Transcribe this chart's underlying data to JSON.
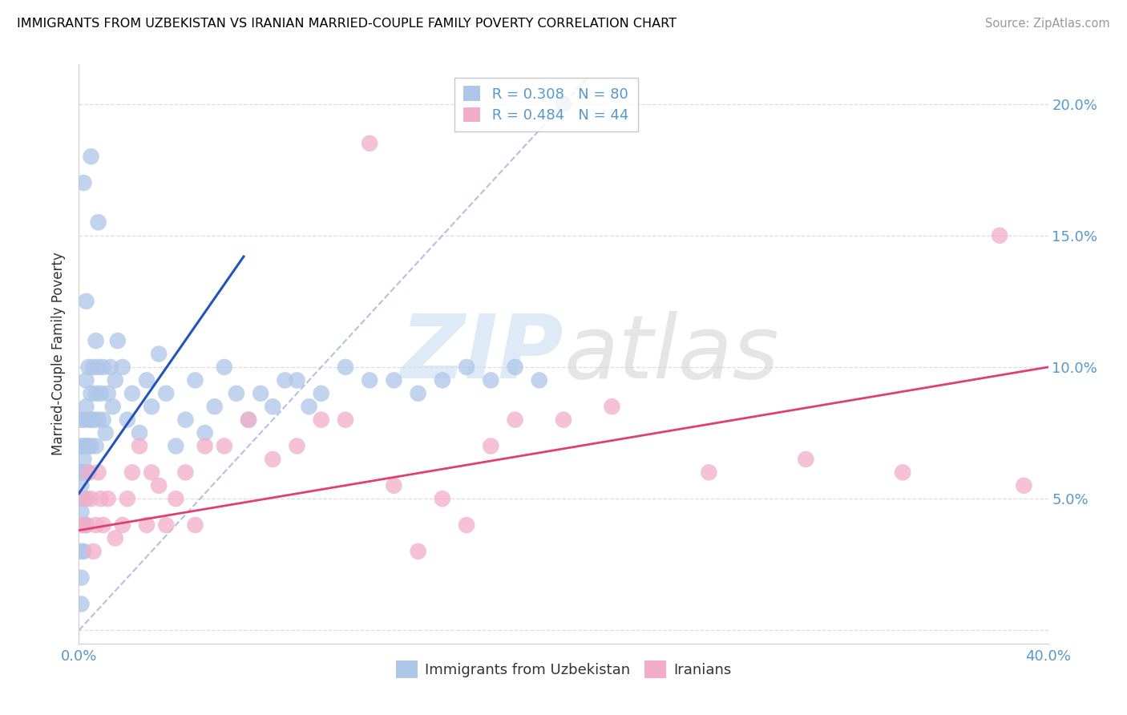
{
  "title": "IMMIGRANTS FROM UZBEKISTAN VS IRANIAN MARRIED-COUPLE FAMILY POVERTY CORRELATION CHART",
  "source": "Source: ZipAtlas.com",
  "ylabel": "Married-Couple Family Poverty",
  "legend1_label": "Immigrants from Uzbekistan",
  "legend2_label": "Iranians",
  "r1": 0.308,
  "n1": 80,
  "r2": 0.484,
  "n2": 44,
  "uzbek_color": "#aec6e8",
  "iran_color": "#f2aec8",
  "uzbek_line_color": "#2255bb",
  "iran_line_color": "#e04070",
  "diag_color": "#aabbdd",
  "grid_color": "#dddddd",
  "tick_color": "#5599cc",
  "xlim": [
    0.0,
    0.4
  ],
  "ylim": [
    -0.005,
    0.215
  ],
  "x_ticks": [
    0.0,
    0.05,
    0.1,
    0.15,
    0.2,
    0.25,
    0.3,
    0.35,
    0.4
  ],
  "y_ticks": [
    0.0,
    0.05,
    0.1,
    0.15,
    0.2
  ],
  "uzbek_x": [
    0.001,
    0.001,
    0.001,
    0.001,
    0.001,
    0.001,
    0.001,
    0.001,
    0.002,
    0.002,
    0.002,
    0.002,
    0.002,
    0.002,
    0.002,
    0.003,
    0.003,
    0.003,
    0.003,
    0.003,
    0.003,
    0.004,
    0.004,
    0.004,
    0.004,
    0.005,
    0.005,
    0.005,
    0.006,
    0.006,
    0.007,
    0.007,
    0.007,
    0.008,
    0.008,
    0.009,
    0.01,
    0.01,
    0.011,
    0.012,
    0.013,
    0.014,
    0.015,
    0.016,
    0.018,
    0.02,
    0.022,
    0.025,
    0.028,
    0.03,
    0.033,
    0.036,
    0.04,
    0.044,
    0.048,
    0.052,
    0.056,
    0.06,
    0.065,
    0.07,
    0.075,
    0.08,
    0.085,
    0.09,
    0.095,
    0.1,
    0.11,
    0.12,
    0.13,
    0.14,
    0.15,
    0.16,
    0.17,
    0.18,
    0.19,
    0.2,
    0.005,
    0.008,
    0.003,
    0.002
  ],
  "uzbek_y": [
    0.045,
    0.055,
    0.06,
    0.03,
    0.02,
    0.01,
    0.07,
    0.08,
    0.05,
    0.06,
    0.04,
    0.03,
    0.07,
    0.08,
    0.065,
    0.06,
    0.07,
    0.05,
    0.04,
    0.085,
    0.095,
    0.07,
    0.06,
    0.08,
    0.1,
    0.07,
    0.08,
    0.09,
    0.08,
    0.1,
    0.09,
    0.11,
    0.07,
    0.08,
    0.1,
    0.09,
    0.08,
    0.1,
    0.075,
    0.09,
    0.1,
    0.085,
    0.095,
    0.11,
    0.1,
    0.08,
    0.09,
    0.075,
    0.095,
    0.085,
    0.105,
    0.09,
    0.07,
    0.08,
    0.095,
    0.075,
    0.085,
    0.1,
    0.09,
    0.08,
    0.09,
    0.085,
    0.095,
    0.095,
    0.085,
    0.09,
    0.1,
    0.095,
    0.095,
    0.09,
    0.095,
    0.1,
    0.095,
    0.1,
    0.095,
    0.2,
    0.18,
    0.155,
    0.125,
    0.17
  ],
  "iran_x": [
    0.001,
    0.002,
    0.003,
    0.004,
    0.005,
    0.006,
    0.007,
    0.008,
    0.009,
    0.01,
    0.012,
    0.015,
    0.018,
    0.02,
    0.022,
    0.025,
    0.028,
    0.03,
    0.033,
    0.036,
    0.04,
    0.044,
    0.048,
    0.052,
    0.06,
    0.07,
    0.08,
    0.09,
    0.1,
    0.11,
    0.12,
    0.13,
    0.14,
    0.15,
    0.16,
    0.17,
    0.18,
    0.2,
    0.22,
    0.26,
    0.3,
    0.34,
    0.38,
    0.39
  ],
  "iran_y": [
    0.04,
    0.05,
    0.04,
    0.06,
    0.05,
    0.03,
    0.04,
    0.06,
    0.05,
    0.04,
    0.05,
    0.035,
    0.04,
    0.05,
    0.06,
    0.07,
    0.04,
    0.06,
    0.055,
    0.04,
    0.05,
    0.06,
    0.04,
    0.07,
    0.07,
    0.08,
    0.065,
    0.07,
    0.08,
    0.08,
    0.185,
    0.055,
    0.03,
    0.05,
    0.04,
    0.07,
    0.08,
    0.08,
    0.085,
    0.06,
    0.065,
    0.06,
    0.15,
    0.055
  ]
}
